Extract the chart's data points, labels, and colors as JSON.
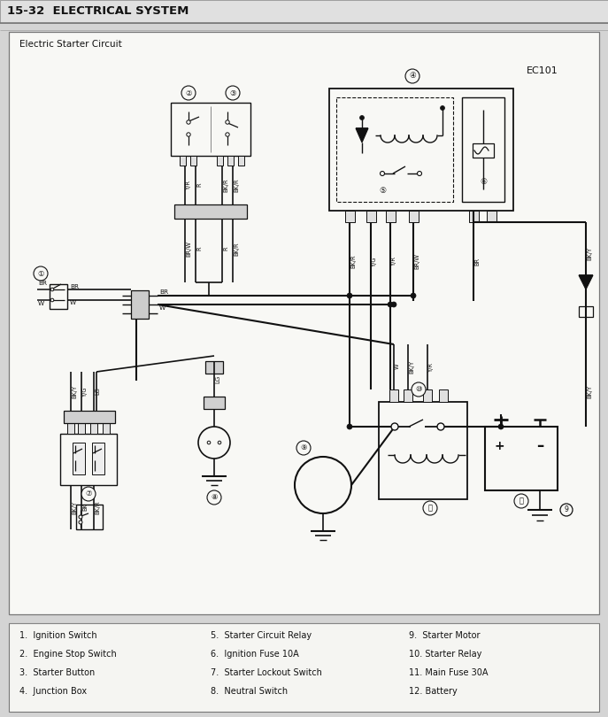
{
  "title": "15-32  ELECTRICAL SYSTEM",
  "subtitle": "Electric Starter Circuit",
  "ec_label": "EC101",
  "bg_color": "#d8d8d8",
  "diagram_bg": "#f5f5f2",
  "legend_col1": [
    "1.  Ignition Switch",
    "2.  Engine Stop Switch",
    "3.  Starter Button",
    "4.  Junction Box"
  ],
  "legend_col2": [
    "5.  Starter Circuit Relay",
    "6.  Ignition Fuse 10A",
    "7.  Starter Lockout Switch",
    "8.  Neutral Switch"
  ],
  "legend_col3": [
    "9.  Starter Motor",
    "10. Starter Relay",
    "11. Main Fuse 30A",
    "12. Battery"
  ],
  "wire_color": "#222222",
  "line_color": "#333333"
}
